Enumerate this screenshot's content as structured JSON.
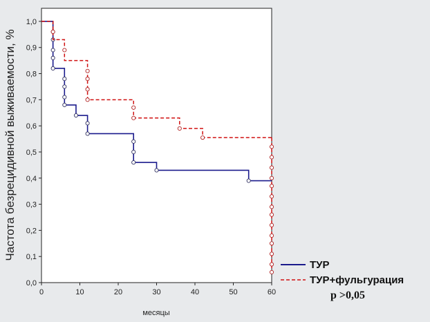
{
  "chart_data": {
    "type": "line",
    "subtype": "kaplan-meier-step",
    "xlabel": "месяцы",
    "ylabel": "Частота безрецидивной выживаемости, %",
    "xlim": [
      0,
      60
    ],
    "ylim": [
      0,
      1.05
    ],
    "xticks": [
      "0",
      "10",
      "20",
      "30",
      "40",
      "50",
      "60"
    ],
    "yticks": [
      "0,0",
      "0,1",
      "0,2",
      "0,3",
      "0,4",
      "0,5",
      "0,6",
      "0,7",
      "0,8",
      "0,9",
      "1,0"
    ],
    "grid": false,
    "legend_position": "bottom-right",
    "p_value": "p >0,05",
    "series": [
      {
        "name": "ТУР",
        "color": "#1a1a8c",
        "style": "solid",
        "steps": [
          [
            0,
            1.0
          ],
          [
            3,
            0.82
          ],
          [
            6,
            0.68
          ],
          [
            9,
            0.64
          ],
          [
            12,
            0.57
          ],
          [
            24,
            0.46
          ],
          [
            30,
            0.43
          ],
          [
            54,
            0.39
          ],
          [
            60,
            0.39
          ]
        ],
        "censored": [
          [
            3,
            0.96
          ],
          [
            3,
            0.93
          ],
          [
            3,
            0.89
          ],
          [
            3,
            0.86
          ],
          [
            3,
            0.82
          ],
          [
            6,
            0.78
          ],
          [
            6,
            0.75
          ],
          [
            6,
            0.71
          ],
          [
            6,
            0.68
          ],
          [
            9,
            0.64
          ],
          [
            12,
            0.61
          ],
          [
            12,
            0.57
          ],
          [
            24,
            0.54
          ],
          [
            24,
            0.5
          ],
          [
            24,
            0.46
          ],
          [
            30,
            0.43
          ],
          [
            54,
            0.39
          ]
        ]
      },
      {
        "name": "ТУР+фульгурация",
        "color": "#d01010",
        "style": "dashed",
        "steps": [
          [
            0,
            1.0
          ],
          [
            3,
            0.93
          ],
          [
            6,
            0.85
          ],
          [
            12,
            0.7
          ],
          [
            24,
            0.63
          ],
          [
            36,
            0.59
          ],
          [
            42,
            0.555
          ],
          [
            60,
            0.555
          ]
        ],
        "censored": [
          [
            3,
            0.96
          ],
          [
            6,
            0.89
          ],
          [
            12,
            0.81
          ],
          [
            12,
            0.78
          ],
          [
            12,
            0.74
          ],
          [
            12,
            0.7
          ],
          [
            24,
            0.67
          ],
          [
            24,
            0.63
          ],
          [
            36,
            0.59
          ],
          [
            42,
            0.555
          ]
        ],
        "final_drop_censored": [
          0.52,
          0.48,
          0.44,
          0.4,
          0.37,
          0.33,
          0.29,
          0.26,
          0.22,
          0.18,
          0.15,
          0.11,
          0.07,
          0.04
        ]
      }
    ]
  }
}
